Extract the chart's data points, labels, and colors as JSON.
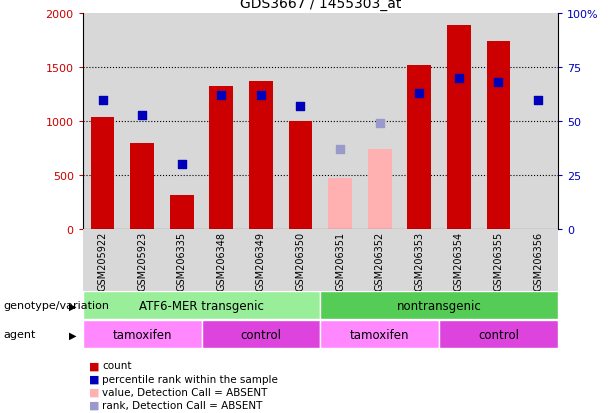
{
  "title": "GDS3667 / 1455303_at",
  "samples": [
    "GSM205922",
    "GSM205923",
    "GSM206335",
    "GSM206348",
    "GSM206349",
    "GSM206350",
    "GSM206351",
    "GSM206352",
    "GSM206353",
    "GSM206354",
    "GSM206355",
    "GSM206356"
  ],
  "counts": [
    1040,
    800,
    310,
    1330,
    1370,
    1000,
    null,
    null,
    1520,
    1890,
    1740,
    null
  ],
  "counts_absent": [
    null,
    null,
    null,
    null,
    null,
    null,
    470,
    740,
    null,
    null,
    null,
    null
  ],
  "pct_ranks": [
    60,
    53,
    30,
    62,
    62,
    57,
    null,
    null,
    63,
    70,
    68,
    60
  ],
  "pct_ranks_absent": [
    null,
    null,
    null,
    null,
    null,
    null,
    37,
    49,
    null,
    null,
    null,
    null
  ],
  "bar_color_present": "#cc0000",
  "bar_color_absent": "#ffb0b0",
  "dot_color_present": "#0000bb",
  "dot_color_absent": "#9999cc",
  "ylim_left": [
    0,
    2000
  ],
  "ylim_right": [
    0,
    100
  ],
  "yticks_left": [
    0,
    500,
    1000,
    1500,
    2000
  ],
  "ytick_labels_left": [
    "0",
    "500",
    "1000",
    "1500",
    "2000"
  ],
  "yticks_right": [
    0,
    25,
    50,
    75,
    100
  ],
  "ytick_labels_right": [
    "0",
    "25",
    "50",
    "75",
    "100%"
  ],
  "genotype_groups": [
    {
      "label": "ATF6-MER transgenic",
      "start": 0,
      "end": 5,
      "color": "#99ee99"
    },
    {
      "label": "nontransgenic",
      "start": 6,
      "end": 11,
      "color": "#55cc55"
    }
  ],
  "agent_groups": [
    {
      "label": "tamoxifen",
      "start": 0,
      "end": 2,
      "color": "#ff88ff"
    },
    {
      "label": "control",
      "start": 3,
      "end": 5,
      "color": "#dd44dd"
    },
    {
      "label": "tamoxifen",
      "start": 6,
      "end": 8,
      "color": "#ff88ff"
    },
    {
      "label": "control",
      "start": 9,
      "end": 11,
      "color": "#dd44dd"
    }
  ],
  "legend_items": [
    {
      "label": "count",
      "color": "#cc0000"
    },
    {
      "label": "percentile rank within the sample",
      "color": "#0000bb"
    },
    {
      "label": "value, Detection Call = ABSENT",
      "color": "#ffb0b0"
    },
    {
      "label": "rank, Detection Call = ABSENT",
      "color": "#9999cc"
    }
  ],
  "label_genotype": "genotype/variation",
  "label_agent": "agent",
  "col_bg_color": "#d8d8d8"
}
